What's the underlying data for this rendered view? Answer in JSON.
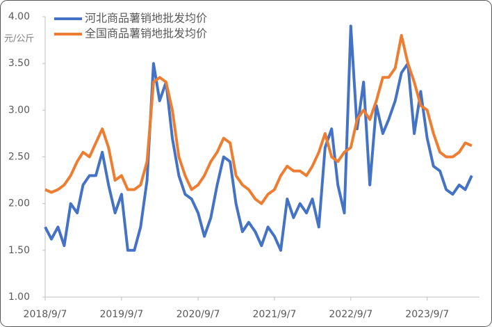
{
  "chart_data": {
    "type": "line",
    "y_unit": "元/公斤",
    "x": [
      "2018/9/7",
      "2018/10/7",
      "2018/11/7",
      "2018/12/7",
      "2019/1/7",
      "2019/2/7",
      "2019/3/7",
      "2019/4/7",
      "2019/5/7",
      "2019/6/7",
      "2019/7/7",
      "2019/8/7",
      "2019/9/7",
      "2019/10/7",
      "2019/11/7",
      "2019/12/7",
      "2020/1/7",
      "2020/2/7",
      "2020/3/7",
      "2020/4/7",
      "2020/5/7",
      "2020/6/7",
      "2020/7/7",
      "2020/8/7",
      "2020/9/7",
      "2020/10/7",
      "2020/11/7",
      "2020/12/7",
      "2021/1/7",
      "2021/2/7",
      "2021/3/7",
      "2021/4/7",
      "2021/5/7",
      "2021/6/7",
      "2021/7/7",
      "2021/8/7",
      "2021/9/7",
      "2021/10/7",
      "2021/11/7",
      "2021/12/7",
      "2022/1/7",
      "2022/2/7",
      "2022/3/7",
      "2022/4/7",
      "2022/5/7",
      "2022/6/7",
      "2022/7/7",
      "2022/8/7",
      "2022/9/7",
      "2022/10/7",
      "2022/11/7",
      "2022/12/7",
      "2023/1/7",
      "2023/2/7",
      "2023/3/7",
      "2023/4/7",
      "2023/5/7",
      "2023/6/7",
      "2023/7/7",
      "2023/8/7",
      "2023/9/7",
      "2023/10/7",
      "2023/11/7",
      "2023/12/7",
      "2024/1/7",
      "2024/2/7",
      "2024/3/7",
      "2024/4/7"
    ],
    "series": [
      {
        "name": "河北商品薯销地批发均价",
        "color": "#4472c4",
        "values": [
          1.75,
          1.62,
          1.75,
          1.55,
          2.0,
          1.9,
          2.2,
          2.3,
          2.3,
          2.55,
          2.2,
          1.9,
          2.1,
          1.5,
          1.5,
          1.75,
          2.25,
          3.5,
          3.1,
          3.3,
          2.7,
          2.3,
          2.1,
          2.05,
          1.9,
          1.65,
          1.85,
          2.2,
          2.5,
          2.45,
          2.0,
          1.7,
          1.8,
          1.7,
          1.55,
          1.75,
          1.65,
          1.5,
          2.05,
          1.85,
          2.0,
          1.9,
          2.05,
          1.75,
          2.6,
          2.8,
          2.2,
          1.9,
          3.9,
          2.8,
          3.3,
          2.2,
          3.05,
          2.75,
          2.9,
          3.1,
          3.4,
          3.5,
          2.75,
          3.2,
          2.7,
          2.4,
          2.35,
          2.15,
          2.1,
          2.2,
          2.15,
          2.3
        ]
      },
      {
        "name": "全国商品薯销地批发均价",
        "color": "#ed7d31",
        "values": [
          2.15,
          2.12,
          2.15,
          2.2,
          2.3,
          2.45,
          2.55,
          2.5,
          2.65,
          2.8,
          2.6,
          2.25,
          2.3,
          2.15,
          2.15,
          2.2,
          2.45,
          3.3,
          3.35,
          3.3,
          3.0,
          2.5,
          2.3,
          2.15,
          2.2,
          2.3,
          2.45,
          2.55,
          2.7,
          2.65,
          2.3,
          2.2,
          2.15,
          2.05,
          2.0,
          2.1,
          2.15,
          2.3,
          2.4,
          2.35,
          2.35,
          2.3,
          2.4,
          2.55,
          2.75,
          2.5,
          2.45,
          2.55,
          2.6,
          2.9,
          3.0,
          2.9,
          3.1,
          3.35,
          3.35,
          3.45,
          3.8,
          3.5,
          3.3,
          3.05,
          3.0,
          2.75,
          2.55,
          2.5,
          2.5,
          2.55,
          2.65,
          2.62
        ]
      }
    ],
    "xlim": [
      "2018/9/7",
      "2024/5/14"
    ],
    "xticks": [
      "2018/9/7",
      "2019/9/7",
      "2020/9/7",
      "2021/9/7",
      "2022/9/7",
      "2023/9/7"
    ],
    "ylim": [
      1,
      4
    ],
    "yticks": [
      {
        "value": 1,
        "label": "1.00"
      },
      {
        "value": 1.5,
        "label": "1.50"
      },
      {
        "value": 2,
        "label": "2.00"
      },
      {
        "value": 2.5,
        "label": "2.50"
      },
      {
        "value": 3,
        "label": "3.00"
      },
      {
        "value": 3.5,
        "label": "3.50"
      },
      {
        "value": 4,
        "label": "4.00"
      }
    ],
    "grid": false,
    "legend": "top-left"
  }
}
